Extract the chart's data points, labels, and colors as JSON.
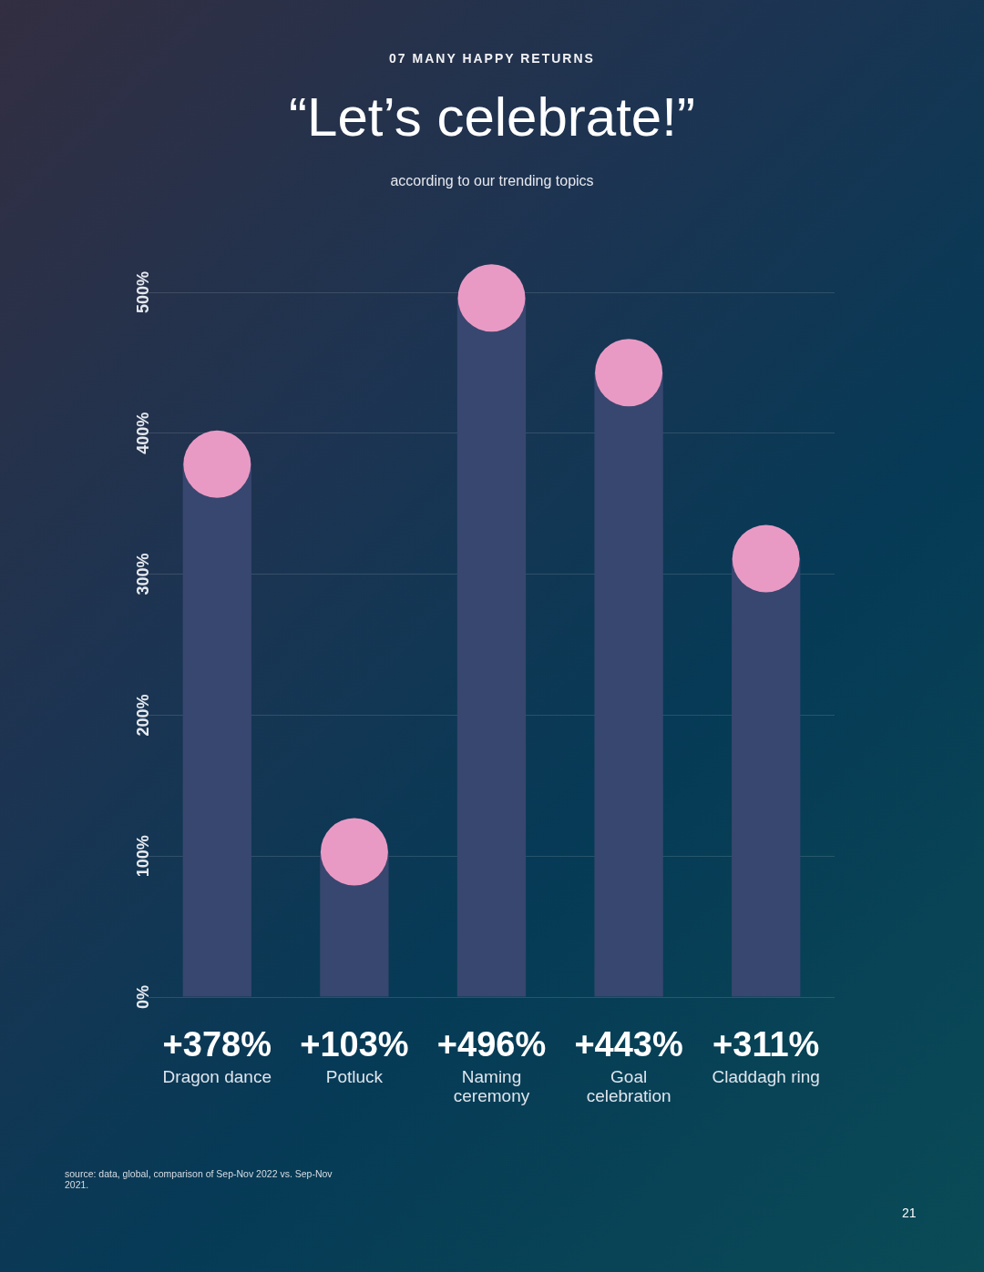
{
  "chart_data": {
    "type": "bar",
    "title": "“Let’s celebrate!”",
    "subtitle": "according to our trending topics",
    "annotations": [
      "07 MANY HAPPY RETURNS",
      "source: data, global, comparison of Sep-Nov 2022 vs. Sep-Nov 2021.",
      "21"
    ],
    "categories": [
      "Dragon dance",
      "Potluck",
      "Naming ceremony",
      "Goal celebration",
      "Claddagh ring"
    ],
    "series": [
      {
        "type": "bar",
        "color": "#38476f",
        "values": [
          378,
          103,
          496,
          443,
          311
        ],
        "value_labels": [
          "+378%",
          "+103%",
          "+496%",
          "+443%",
          "+311%"
        ]
      },
      {
        "type": "scatter",
        "color": "#e99ac4",
        "x": [
          "Dragon dance",
          "Potluck",
          "Naming ceremony",
          "Goal celebration",
          "Claddagh ring"
        ],
        "values": [
          378,
          103,
          496,
          443,
          311
        ]
      }
    ],
    "ylim": [
      0,
      500
    ],
    "yticks": [
      {
        "value": 0,
        "label": "0%"
      },
      {
        "value": 100,
        "label": "100%"
      },
      {
        "value": 200,
        "label": "200%"
      },
      {
        "value": 300,
        "label": "300%"
      },
      {
        "value": 400,
        "label": "400%"
      },
      {
        "value": 500,
        "label": "500%"
      }
    ],
    "grid": "y",
    "marker": "circle"
  }
}
